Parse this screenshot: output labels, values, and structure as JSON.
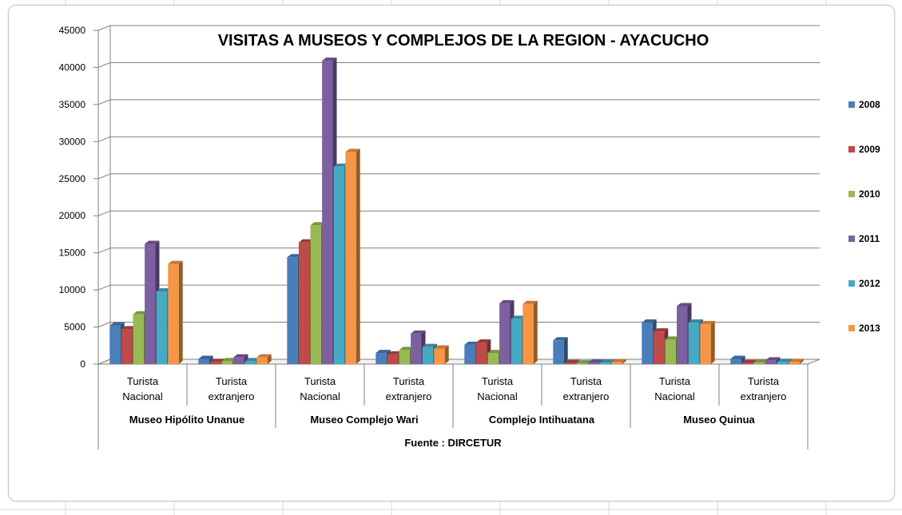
{
  "chart_data": {
    "type": "bar",
    "title": "VISITAS A MUSEOS Y COMPLEJOS DE LA REGION - AYACUCHO",
    "xlabel": "Fuente : DIRCETUR",
    "ylabel": "",
    "ylim": [
      0,
      45000
    ],
    "yticks": [
      0,
      5000,
      10000,
      15000,
      20000,
      25000,
      30000,
      35000,
      40000,
      45000
    ],
    "grid": true,
    "legend_position": "right",
    "groups": [
      {
        "label": "Museo Hipólito Unanue",
        "categories": [
          "Turista Nacional",
          "Turista extranjero"
        ]
      },
      {
        "label": "Museo Complejo Wari",
        "categories": [
          "Turista Nacional",
          "Turista extranjero"
        ]
      },
      {
        "label": "Complejo Intihuatana",
        "categories": [
          "Turista Nacional",
          "Turista extranjero"
        ]
      },
      {
        "label": "Museo Quinua",
        "categories": [
          "Turista Nacional",
          "Turista extranjero"
        ]
      }
    ],
    "categories": [
      "Turista Nacional",
      "Turista extranjero",
      "Turista Nacional",
      "Turista extranjero",
      "Turista Nacional",
      "Turista extranjero",
      "Turista Nacional",
      "Turista extranjero"
    ],
    "series": [
      {
        "name": "2008",
        "color": "#4a7ebb",
        "values": [
          5200,
          700,
          14400,
          1500,
          2600,
          3200,
          5600,
          700
        ]
      },
      {
        "name": "2009",
        "color": "#be4b48",
        "values": [
          4700,
          300,
          16400,
          1300,
          2900,
          150,
          4400,
          150
        ]
      },
      {
        "name": "2010",
        "color": "#98b954",
        "values": [
          6700,
          400,
          18700,
          1900,
          1500,
          100,
          3300,
          200
        ]
      },
      {
        "name": "2011",
        "color": "#7d60a0",
        "values": [
          16200,
          900,
          40900,
          4100,
          8200,
          200,
          7800,
          500
        ]
      },
      {
        "name": "2012",
        "color": "#46aac5",
        "values": [
          9800,
          400,
          26600,
          2300,
          6100,
          200,
          5600,
          300
        ]
      },
      {
        "name": "2013",
        "color": "#f79646",
        "values": [
          13500,
          900,
          28600,
          2100,
          8100,
          250,
          5400,
          300
        ]
      }
    ]
  }
}
